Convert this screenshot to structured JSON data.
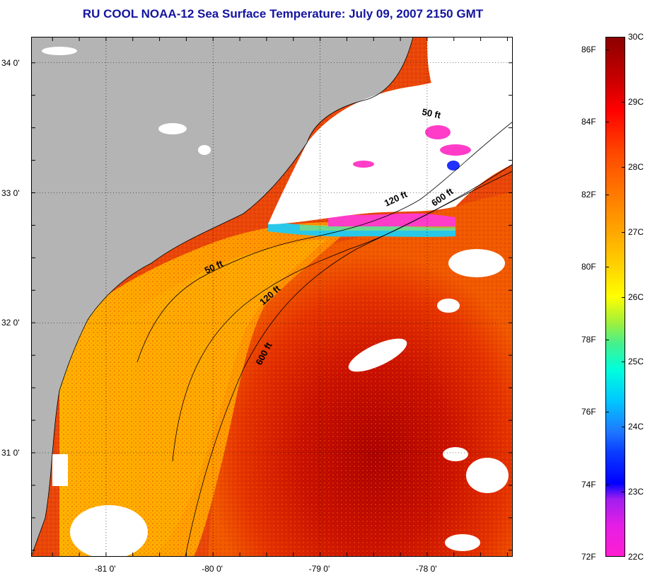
{
  "title": "RU COOL  NOAA-12  Sea Surface Temperature:  July 09, 2007 2150 GMT",
  "map": {
    "x_ticks": [
      {
        "label": "-81 0'",
        "lon": -81
      },
      {
        "label": "-80 0'",
        "lon": -80
      },
      {
        "label": "-79 0'",
        "lon": -79
      },
      {
        "label": "-78 0'",
        "lon": -78
      }
    ],
    "y_ticks": [
      {
        "label": "34 0'",
        "lat": 34
      },
      {
        "label": "33 0'",
        "lat": 33
      },
      {
        "label": "32 0'",
        "lat": 32
      },
      {
        "label": "31 0'",
        "lat": 31
      }
    ],
    "lon_range": [
      -81.7,
      -77.2
    ],
    "lat_range": [
      30.2,
      34.2
    ],
    "isobath_labels": {
      "ft50_north": "50 ft",
      "ft120_north": "120 ft",
      "ft600_north": "600 ft",
      "ft50_south": "50 ft",
      "ft120_south": "120 ft",
      "ft600_south": "600 ft"
    },
    "colors": {
      "land": "#b4b4b4",
      "cloud": "#ffffff"
    }
  },
  "colorbar": {
    "fahrenheit_labels": [
      "86F",
      "84F",
      "82F",
      "80F",
      "78F",
      "76F",
      "74F",
      "72F"
    ],
    "celsius_labels": [
      "30C",
      "29C",
      "28C",
      "27C",
      "26C",
      "25C",
      "24C",
      "23C",
      "22C"
    ]
  }
}
